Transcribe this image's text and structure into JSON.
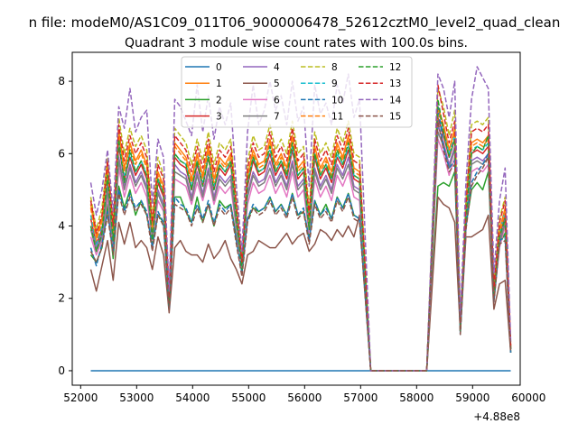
{
  "chart_data": {
    "type": "line",
    "suptitle": "n file: modeM0/AS1C09_011T06_9000006478_52612cztM0_level2_quad_clean",
    "title": "Quadrant 3 module wise count rates with 100.0s bins.",
    "xlabel": "",
    "ylabel": "",
    "x_offset_label": "+4.88e8",
    "xlim": [
      51850,
      59850
    ],
    "ylim": [
      -0.4,
      8.8
    ],
    "xticks": [
      52000,
      53000,
      54000,
      55000,
      56000,
      57000,
      58000,
      59000,
      60000
    ],
    "xtick_labels": [
      "52000",
      "53000",
      "54000",
      "55000",
      "56000",
      "57000",
      "58000",
      "59000",
      "60000"
    ],
    "yticks": [
      0,
      2,
      4,
      6,
      8
    ],
    "ytick_labels": [
      "0",
      "2",
      "4",
      "6",
      "8"
    ],
    "legend_position": "upper center",
    "legend_columns": 4,
    "x": [
      52180,
      52280,
      52380,
      52480,
      52580,
      52680,
      52780,
      52880,
      52980,
      53080,
      53180,
      53280,
      53380,
      53480,
      53580,
      53680,
      53780,
      53880,
      53980,
      54080,
      54180,
      54280,
      54380,
      54480,
      54580,
      54680,
      54780,
      54880,
      54980,
      55080,
      55180,
      55280,
      55380,
      55480,
      55580,
      55680,
      55780,
      55880,
      55980,
      56080,
      56180,
      56280,
      56380,
      56480,
      56580,
      56680,
      56780,
      56880,
      56980,
      57180,
      57380,
      57580,
      57780,
      57980,
      58180,
      58380,
      58480,
      58580,
      58680,
      58780,
      58880,
      58980,
      59080,
      59180,
      59280,
      59380,
      59480,
      59580,
      59680
    ],
    "series": [
      {
        "name": "0",
        "color": "#1f77b4",
        "dash": "solid",
        "values": [
          0,
          0,
          0,
          0,
          0,
          0,
          0,
          0,
          0,
          0,
          0,
          0,
          0,
          0,
          0,
          0,
          0,
          0,
          0,
          0,
          0,
          0,
          0,
          0,
          0,
          0,
          0,
          0,
          0,
          0,
          0,
          0,
          0,
          0,
          0,
          0,
          0,
          0,
          0,
          0,
          0,
          0,
          0,
          0,
          0,
          0,
          0,
          0,
          0,
          0,
          0,
          0,
          0,
          0,
          0,
          0,
          0,
          0,
          0,
          0,
          0,
          0,
          0,
          0,
          0,
          0,
          0,
          0,
          0
        ]
      },
      {
        "name": "1",
        "color": "#ff7f0e",
        "dash": "solid",
        "values": [
          4.6,
          3.7,
          4.2,
          5.6,
          3.9,
          6.6,
          5.6,
          6.3,
          5.8,
          6.1,
          5.7,
          4.0,
          5.5,
          5.1,
          2.0,
          6.3,
          6.1,
          5.9,
          5.3,
          6.0,
          5.4,
          6.2,
          5.3,
          5.9,
          5.7,
          6.0,
          4.5,
          3.0,
          5.4,
          6.1,
          5.7,
          5.8,
          6.4,
          5.7,
          6.0,
          5.6,
          6.5,
          5.6,
          5.8,
          4.2,
          6.2,
          5.6,
          5.9,
          5.5,
          6.3,
          5.9,
          6.5,
          5.6,
          5.5,
          0,
          0,
          0,
          0,
          0,
          0,
          7.3,
          6.8,
          6.1,
          6.7,
          1.2,
          4.4,
          6.3,
          6.4,
          6.3,
          6.5,
          2.2,
          3.9,
          4.5,
          0.6
        ]
      },
      {
        "name": "2",
        "color": "#2ca02c",
        "dash": "solid",
        "values": [
          3.2,
          3.0,
          3.4,
          4.6,
          3.1,
          5.1,
          4.5,
          5.0,
          4.3,
          4.7,
          4.3,
          3.5,
          4.3,
          4.1,
          1.9,
          4.8,
          4.8,
          4.4,
          4.1,
          4.8,
          4.1,
          4.6,
          4.0,
          4.7,
          4.5,
          4.6,
          3.7,
          2.9,
          4.2,
          4.5,
          4.4,
          4.5,
          4.8,
          4.4,
          4.6,
          4.3,
          4.9,
          4.3,
          4.4,
          3.7,
          4.7,
          4.3,
          4.6,
          4.2,
          4.8,
          4.5,
          4.9,
          4.3,
          4.2,
          0,
          0,
          0,
          0,
          0,
          0,
          5.1,
          5.2,
          5.1,
          5.5,
          1.1,
          4.0,
          5.0,
          5.2,
          5.0,
          5.5,
          2.0,
          3.5,
          3.8,
          0.5
        ]
      },
      {
        "name": "3",
        "color": "#d62728",
        "dash": "solid",
        "values": [
          4.2,
          3.5,
          3.9,
          5.3,
          3.7,
          6.2,
          5.3,
          5.9,
          5.4,
          5.7,
          5.3,
          3.8,
          5.2,
          4.8,
          1.9,
          5.9,
          5.7,
          5.6,
          5.0,
          5.7,
          5.1,
          5.9,
          5.0,
          5.6,
          5.4,
          5.7,
          4.3,
          2.9,
          5.1,
          5.8,
          5.4,
          5.5,
          6.0,
          5.4,
          5.7,
          5.3,
          6.1,
          5.3,
          5.5,
          4.0,
          5.9,
          5.3,
          5.6,
          5.2,
          5.9,
          5.6,
          6.1,
          5.3,
          5.2,
          0,
          0,
          0,
          0,
          0,
          0,
          7.0,
          6.5,
          5.9,
          6.4,
          1.2,
          4.2,
          6.0,
          6.1,
          6.0,
          6.2,
          2.1,
          3.7,
          4.3,
          0.6
        ]
      },
      {
        "name": "4",
        "color": "#9467bd",
        "dash": "solid",
        "values": [
          4.0,
          3.4,
          3.8,
          5.1,
          3.6,
          5.9,
          5.1,
          5.7,
          5.2,
          5.5,
          5.1,
          3.7,
          5.0,
          4.6,
          1.9,
          5.7,
          5.5,
          5.4,
          4.8,
          5.5,
          4.9,
          5.6,
          4.8,
          5.4,
          5.2,
          5.4,
          4.1,
          2.9,
          4.9,
          5.5,
          5.2,
          5.3,
          5.8,
          5.2,
          5.5,
          5.1,
          5.8,
          5.1,
          5.3,
          3.9,
          5.6,
          5.1,
          5.4,
          5.0,
          5.7,
          5.4,
          5.9,
          5.1,
          5.0,
          0,
          0,
          0,
          0,
          0,
          0,
          6.8,
          6.3,
          5.7,
          6.2,
          1.1,
          4.1,
          5.8,
          5.9,
          5.8,
          6.0,
          2.1,
          3.6,
          4.2,
          0.6
        ]
      },
      {
        "name": "5",
        "color": "#8c564b",
        "dash": "solid",
        "values": [
          2.8,
          2.2,
          2.9,
          3.6,
          2.5,
          4.1,
          3.5,
          4.1,
          3.4,
          3.6,
          3.4,
          2.8,
          3.7,
          3.2,
          1.6,
          3.4,
          3.6,
          3.3,
          3.2,
          3.2,
          3.0,
          3.5,
          3.1,
          3.3,
          3.6,
          3.1,
          2.8,
          2.4,
          3.2,
          3.3,
          3.6,
          3.5,
          3.4,
          3.4,
          3.6,
          3.8,
          3.5,
          3.7,
          3.8,
          3.3,
          3.5,
          3.9,
          3.8,
          3.6,
          3.9,
          3.7,
          4.0,
          3.7,
          4.3,
          0,
          0,
          0,
          0,
          0,
          0,
          4.8,
          4.6,
          4.5,
          4.1,
          1.1,
          3.7,
          3.7,
          3.8,
          3.9,
          4.3,
          1.7,
          2.4,
          2.5,
          0.5
        ]
      },
      {
        "name": "6",
        "color": "#e377c2",
        "dash": "solid",
        "values": [
          3.7,
          3.2,
          3.6,
          4.8,
          3.4,
          5.6,
          4.8,
          5.4,
          4.9,
          5.2,
          4.8,
          3.6,
          4.7,
          4.4,
          1.8,
          5.3,
          5.2,
          5.1,
          4.6,
          5.2,
          4.7,
          5.3,
          4.6,
          5.1,
          4.9,
          5.1,
          3.9,
          2.8,
          4.6,
          5.2,
          4.9,
          5.0,
          5.4,
          4.9,
          5.2,
          4.8,
          5.5,
          4.8,
          5.0,
          3.8,
          5.3,
          4.8,
          5.1,
          4.7,
          5.4,
          5.1,
          5.5,
          4.8,
          4.7,
          0,
          0,
          0,
          0,
          0,
          0,
          6.4,
          6.0,
          5.4,
          5.9,
          1.1,
          3.9,
          5.5,
          5.6,
          5.5,
          5.7,
          2.0,
          3.4,
          4.0,
          0.6
        ]
      },
      {
        "name": "7",
        "color": "#7f7f7f",
        "dash": "solid",
        "values": [
          3.9,
          3.3,
          3.7,
          5.0,
          3.5,
          5.8,
          5.0,
          5.6,
          5.1,
          5.4,
          5.0,
          3.7,
          4.9,
          4.5,
          1.9,
          5.5,
          5.4,
          5.3,
          4.7,
          5.4,
          4.8,
          5.5,
          4.7,
          5.3,
          5.1,
          5.3,
          4.0,
          2.9,
          4.8,
          5.4,
          5.1,
          5.2,
          5.6,
          5.1,
          5.4,
          5.0,
          5.7,
          5.0,
          5.2,
          3.9,
          5.5,
          5.0,
          5.3,
          4.9,
          5.6,
          5.3,
          5.7,
          5.0,
          4.9,
          0,
          0,
          0,
          0,
          0,
          0,
          6.6,
          6.2,
          5.6,
          6.1,
          1.1,
          4.0,
          5.7,
          5.8,
          5.7,
          5.9,
          2.0,
          3.5,
          4.1,
          0.6
        ]
      },
      {
        "name": "8",
        "color": "#bcbd22",
        "dash": "dashed",
        "values": [
          4.8,
          3.9,
          4.5,
          5.9,
          4.1,
          7.0,
          6.0,
          6.7,
          6.2,
          6.5,
          6.1,
          4.2,
          5.9,
          5.4,
          2.1,
          6.7,
          6.5,
          6.3,
          5.7,
          6.4,
          5.8,
          6.6,
          5.7,
          6.3,
          6.1,
          6.4,
          4.8,
          3.1,
          5.8,
          6.5,
          6.1,
          6.2,
          6.8,
          6.1,
          6.4,
          6.0,
          6.9,
          6.0,
          6.2,
          4.5,
          6.6,
          6.0,
          6.3,
          5.9,
          6.7,
          6.3,
          6.9,
          6.0,
          5.9,
          0,
          0,
          0,
          0,
          0,
          0,
          7.8,
          7.3,
          6.5,
          7.2,
          1.3,
          4.7,
          6.8,
          6.9,
          6.8,
          7.0,
          2.4,
          4.2,
          4.8,
          0.7
        ]
      },
      {
        "name": "9",
        "color": "#17becf",
        "dash": "dashed",
        "values": [
          4.3,
          3.5,
          4.0,
          5.4,
          3.8,
          6.3,
          5.4,
          6.0,
          5.5,
          5.8,
          5.4,
          3.9,
          5.3,
          4.9,
          1.9,
          6.0,
          5.8,
          5.7,
          5.1,
          5.8,
          5.2,
          6.0,
          5.1,
          5.7,
          5.5,
          5.8,
          4.4,
          2.9,
          5.2,
          5.9,
          5.5,
          5.6,
          6.1,
          5.5,
          5.8,
          5.4,
          6.2,
          5.4,
          5.6,
          4.1,
          6.0,
          5.4,
          5.7,
          5.3,
          6.0,
          5.7,
          6.2,
          5.4,
          5.3,
          0,
          0,
          0,
          0,
          0,
          0,
          7.1,
          6.6,
          6.0,
          6.5,
          1.2,
          4.3,
          6.1,
          6.2,
          6.1,
          6.3,
          2.1,
          3.8,
          4.4,
          0.6
        ]
      },
      {
        "name": "10",
        "color": "#1f77b4",
        "dash": "dashed",
        "values": [
          3.4,
          2.9,
          3.5,
          4.4,
          3.3,
          5.0,
          4.4,
          4.9,
          4.5,
          4.7,
          4.4,
          3.4,
          4.4,
          4.1,
          1.7,
          4.8,
          4.6,
          4.5,
          4.1,
          4.6,
          4.2,
          4.7,
          4.1,
          4.6,
          4.4,
          4.6,
          3.6,
          2.7,
          4.2,
          4.6,
          4.4,
          4.5,
          4.8,
          4.4,
          4.6,
          4.3,
          4.9,
          4.3,
          4.5,
          3.6,
          4.7,
          4.3,
          4.5,
          4.2,
          4.8,
          4.5,
          4.9,
          4.3,
          4.2,
          0,
          0,
          0,
          0,
          0,
          0,
          7.3,
          6.2,
          5.6,
          5.8,
          1.0,
          4.0,
          5.2,
          5.5,
          5.7,
          6.0,
          1.9,
          3.6,
          3.7,
          0.5
        ]
      },
      {
        "name": "11",
        "color": "#ff7f0e",
        "dash": "dashed",
        "values": [
          4.5,
          3.6,
          4.1,
          5.5,
          3.8,
          6.5,
          5.5,
          6.2,
          5.7,
          6.0,
          5.6,
          3.9,
          5.4,
          5.0,
          2.0,
          6.2,
          6.0,
          5.8,
          5.2,
          5.9,
          5.3,
          6.1,
          5.2,
          5.8,
          5.6,
          5.9,
          4.4,
          3.0,
          5.3,
          6.0,
          5.6,
          5.7,
          6.3,
          5.6,
          5.9,
          5.5,
          6.4,
          5.5,
          5.7,
          4.1,
          6.1,
          5.5,
          5.8,
          5.4,
          6.2,
          5.8,
          6.4,
          5.5,
          5.4,
          0,
          0,
          0,
          0,
          0,
          0,
          7.2,
          6.7,
          6.1,
          6.6,
          1.2,
          4.3,
          6.2,
          6.3,
          6.2,
          6.4,
          2.2,
          3.8,
          4.4,
          0.6
        ]
      },
      {
        "name": "12",
        "color": "#2ca02c",
        "dash": "dashed",
        "values": [
          4.0,
          3.3,
          3.8,
          5.4,
          3.6,
          6.4,
          5.2,
          6.1,
          5.5,
          5.8,
          5.4,
          3.6,
          5.3,
          4.9,
          1.8,
          6.0,
          5.8,
          5.7,
          5.0,
          5.8,
          5.1,
          5.9,
          5.0,
          5.7,
          5.5,
          5.8,
          4.2,
          2.8,
          5.2,
          5.9,
          5.5,
          5.6,
          6.2,
          5.5,
          5.8,
          5.4,
          6.3,
          5.4,
          5.6,
          3.9,
          6.0,
          5.4,
          5.7,
          5.3,
          6.1,
          5.7,
          6.3,
          5.4,
          5.3,
          0,
          0,
          0,
          0,
          0,
          0,
          7.5,
          6.6,
          5.9,
          6.4,
          1.1,
          4.2,
          6.0,
          6.2,
          6.1,
          6.5,
          2.1,
          3.7,
          4.2,
          0.6
        ]
      },
      {
        "name": "13",
        "color": "#d62728",
        "dash": "dashed",
        "values": [
          4.7,
          3.8,
          4.3,
          5.8,
          4.0,
          6.8,
          5.8,
          6.5,
          6.0,
          6.3,
          5.9,
          4.1,
          5.7,
          5.3,
          2.0,
          6.5,
          6.3,
          6.1,
          5.5,
          6.2,
          5.6,
          6.4,
          5.5,
          6.1,
          5.9,
          6.2,
          4.6,
          3.0,
          5.6,
          6.3,
          5.9,
          6.0,
          6.6,
          5.9,
          6.2,
          5.8,
          6.7,
          5.8,
          6.0,
          4.3,
          6.4,
          5.8,
          6.1,
          5.7,
          6.5,
          6.1,
          6.7,
          5.8,
          5.7,
          0,
          0,
          0,
          0,
          0,
          0,
          7.9,
          7.1,
          6.3,
          6.9,
          1.3,
          4.6,
          6.6,
          6.7,
          6.6,
          6.8,
          2.3,
          4.1,
          4.7,
          0.7
        ]
      },
      {
        "name": "14",
        "color": "#9467bd",
        "dash": "dashed",
        "values": [
          5.2,
          4.3,
          5.0,
          6.1,
          4.4,
          7.3,
          6.7,
          7.8,
          6.6,
          7.0,
          7.2,
          4.6,
          6.4,
          5.9,
          2.2,
          7.5,
          7.3,
          6.9,
          6.5,
          7.9,
          6.6,
          7.6,
          6.4,
          7.3,
          6.8,
          7.4,
          5.1,
          3.3,
          6.6,
          7.9,
          6.8,
          7.2,
          8.0,
          7.2,
          7.6,
          6.8,
          8.0,
          6.9,
          7.3,
          5.1,
          7.9,
          7.1,
          7.4,
          6.8,
          7.9,
          7.4,
          8.2,
          7.0,
          7.5,
          0,
          0,
          0,
          0,
          0,
          0,
          8.2,
          7.8,
          7.0,
          8.0,
          1.5,
          5.2,
          7.5,
          8.4,
          8.1,
          7.8,
          2.7,
          4.7,
          5.6,
          0.8
        ]
      },
      {
        "name": "15",
        "color": "#8c564b",
        "dash": "dashed",
        "values": [
          3.3,
          3.0,
          3.4,
          4.3,
          3.2,
          4.9,
          4.3,
          4.8,
          4.4,
          4.6,
          4.3,
          3.3,
          4.3,
          4.0,
          1.7,
          4.6,
          4.5,
          4.4,
          4.0,
          4.5,
          4.1,
          4.6,
          4.0,
          4.5,
          4.3,
          4.5,
          3.5,
          2.6,
          4.1,
          4.5,
          4.3,
          4.4,
          4.7,
          4.3,
          4.5,
          4.2,
          4.8,
          4.2,
          4.4,
          3.5,
          4.6,
          4.2,
          4.4,
          4.1,
          4.7,
          4.4,
          4.8,
          4.2,
          4.1,
          0,
          0,
          0,
          0,
          0,
          0,
          6.9,
          6.1,
          5.5,
          5.7,
          1.0,
          3.9,
          5.1,
          5.4,
          5.6,
          5.9,
          1.9,
          3.5,
          3.6,
          0.5
        ]
      }
    ]
  }
}
